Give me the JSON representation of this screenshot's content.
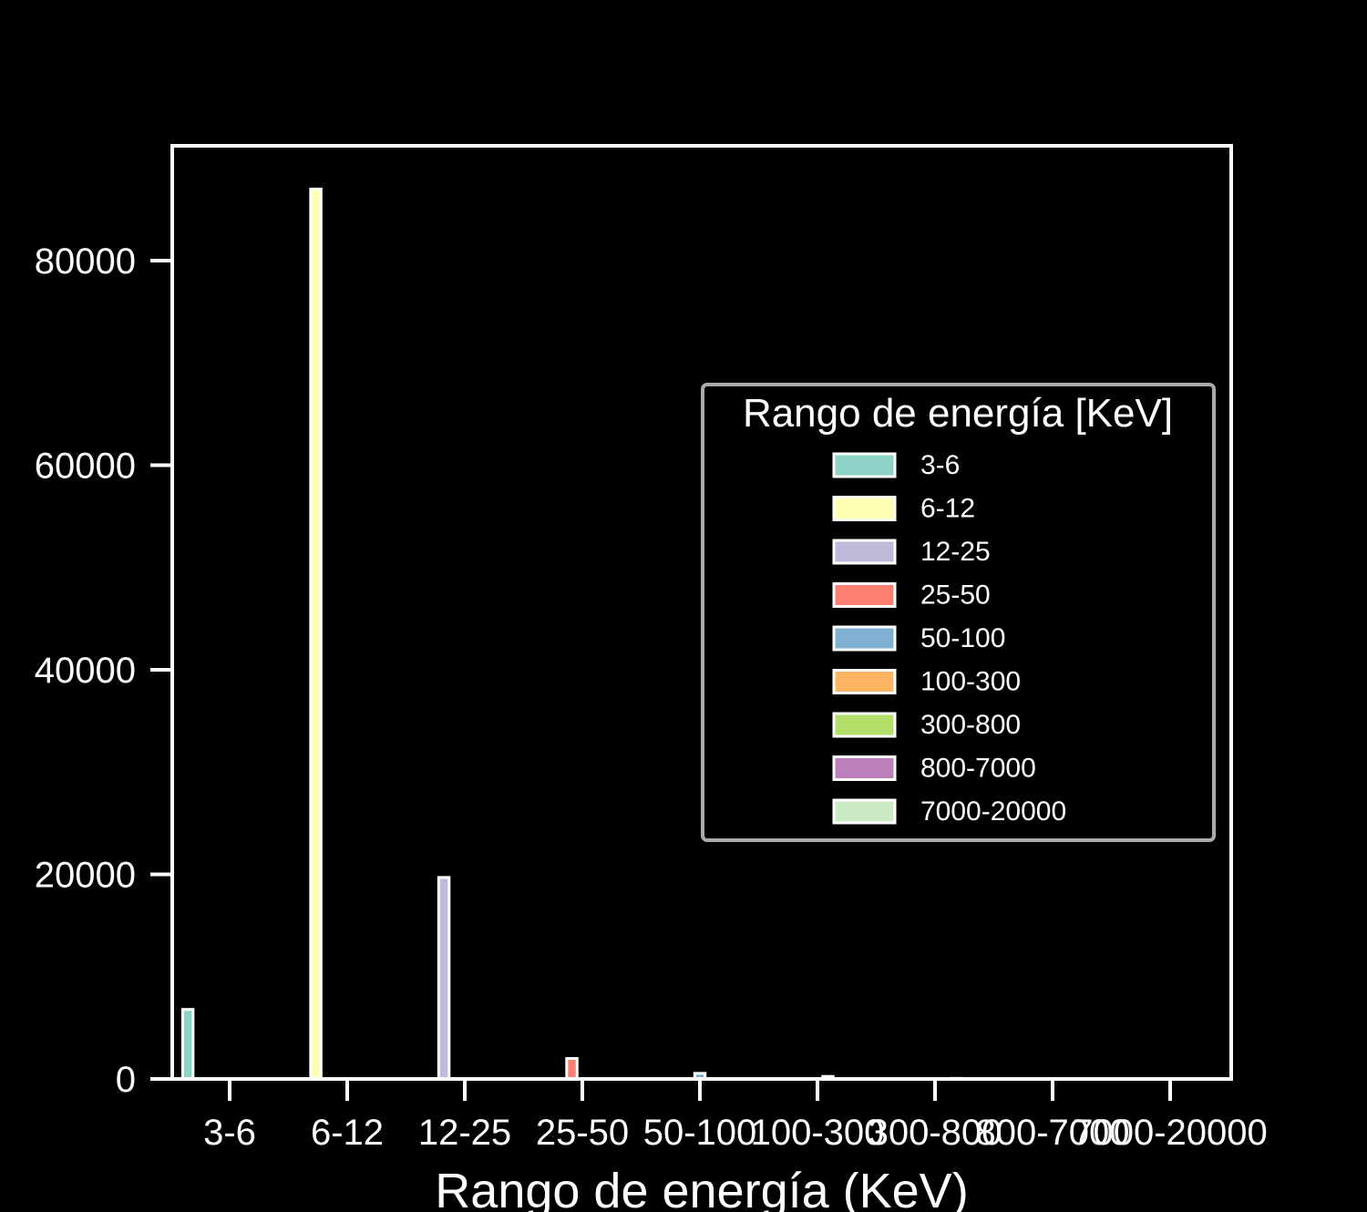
{
  "chart_data": {
    "type": "bar",
    "xlabel": "Rango de energía (KeV)",
    "ylabel": "",
    "categories": [
      "3-6",
      "6-12",
      "12-25",
      "25-50",
      "50-100",
      "100-300",
      "300-800",
      "800-7000",
      "7000-20000"
    ],
    "yticks": [
      "0",
      "20000",
      "40000",
      "60000",
      "80000"
    ],
    "ylim": [
      0,
      91000
    ],
    "legend": {
      "title": "Rango de energía [KeV]",
      "position": "center-right",
      "entries": [
        "3-6",
        "6-12",
        "12-25",
        "25-50",
        "50-100",
        "100-300",
        "300-800",
        "800-7000",
        "7000-20000"
      ]
    },
    "series": [
      {
        "name": "3-6",
        "color": "#8dd3c7",
        "values": [
          6800,
          0,
          0,
          0,
          0,
          0,
          0,
          0,
          0
        ]
      },
      {
        "name": "6-12",
        "color": "#ffffb3",
        "values": [
          0,
          87000,
          0,
          0,
          0,
          0,
          0,
          0,
          0
        ]
      },
      {
        "name": "12-25",
        "color": "#bebada",
        "values": [
          0,
          0,
          19700,
          0,
          0,
          0,
          0,
          0,
          0
        ]
      },
      {
        "name": "25-50",
        "color": "#fb8072",
        "values": [
          0,
          0,
          0,
          2000,
          0,
          0,
          0,
          0,
          0
        ]
      },
      {
        "name": "50-100",
        "color": "#80b1d3",
        "values": [
          0,
          0,
          0,
          0,
          550,
          0,
          0,
          0,
          0
        ]
      },
      {
        "name": "100-300",
        "color": "#fdb462",
        "values": [
          0,
          0,
          0,
          0,
          0,
          250,
          0,
          0,
          0
        ]
      },
      {
        "name": "300-800",
        "color": "#b3de69",
        "values": [
          0,
          0,
          0,
          0,
          0,
          0,
          60,
          0,
          0
        ]
      },
      {
        "name": "800-7000",
        "color": "#bc80bd",
        "values": [
          0,
          0,
          0,
          0,
          0,
          0,
          0,
          20,
          0
        ]
      },
      {
        "name": "7000-20000",
        "color": "#ccebc5",
        "values": [
          0,
          0,
          0,
          0,
          0,
          0,
          0,
          0,
          5
        ]
      }
    ]
  }
}
